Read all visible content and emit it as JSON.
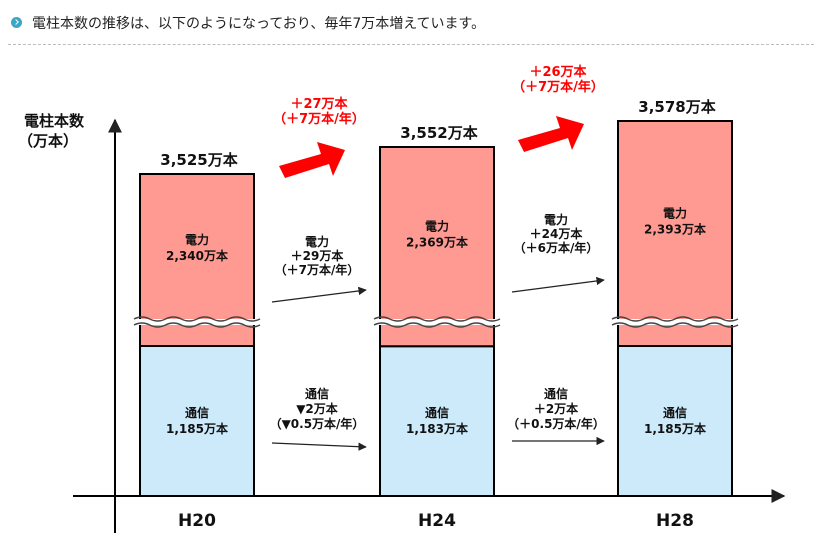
{
  "heading": {
    "text": "電柱本数の推移は、以下のようになっており、毎年7万本増えています。"
  },
  "chart_data": {
    "type": "bar",
    "stacked": true,
    "axis_broken": true,
    "ylabel": [
      "電柱本数",
      "（万本）"
    ],
    "categories": [
      "H20",
      "H24",
      "H28"
    ],
    "totals": [
      "3,525万本",
      "3,552万本",
      "3,578万本"
    ],
    "series": [
      {
        "name": "通信",
        "color": "#cdeafa",
        "values": [
          1185,
          1183,
          1185
        ],
        "labels": [
          [
            "通信",
            "1,185万本"
          ],
          [
            "通信",
            "1,183万本"
          ],
          [
            "通信",
            "1,185万本"
          ]
        ]
      },
      {
        "name": "電力",
        "color": "#ff9a93",
        "values": [
          2340,
          2369,
          2393
        ],
        "labels": [
          [
            "電力",
            "2,340万本"
          ],
          [
            "電力",
            "2,369万本"
          ],
          [
            "電力",
            "2,393万本"
          ]
        ]
      }
    ],
    "total_changes": [
      {
        "lines": [
          "＋27万本",
          "（＋7万本/年）"
        ],
        "color": "#ff0000"
      },
      {
        "lines": [
          "＋26万本",
          "（＋7万本/年）"
        ],
        "color": "#ff0000"
      }
    ],
    "power_changes": [
      [
        "電力",
        "＋29万本",
        "（＋7万本/年）"
      ],
      [
        "電力",
        "＋24万本",
        "（＋6万本/年）"
      ]
    ],
    "telecom_changes": [
      [
        "通信",
        "▼2万本",
        "（▼0.5万本/年）"
      ],
      [
        "通信",
        "＋2万本",
        "（＋0.5万本/年）"
      ]
    ]
  }
}
